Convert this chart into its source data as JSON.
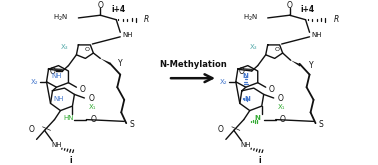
{
  "arrow_label": "N-Methylation",
  "label_i_plus_4": "i+4",
  "label_i": "i",
  "label_R": "R",
  "label_Y": "Y",
  "label_X1": "X₁",
  "label_X2": "X₂",
  "label_X3": "X₃",
  "color_blue": "#4477cc",
  "color_green": "#33aa33",
  "color_black": "#111111",
  "color_teal": "#55aaaa",
  "bg_color": "#ffffff",
  "fig_width": 3.78,
  "fig_height": 1.65,
  "dpi": 100,
  "lw": 1.0
}
